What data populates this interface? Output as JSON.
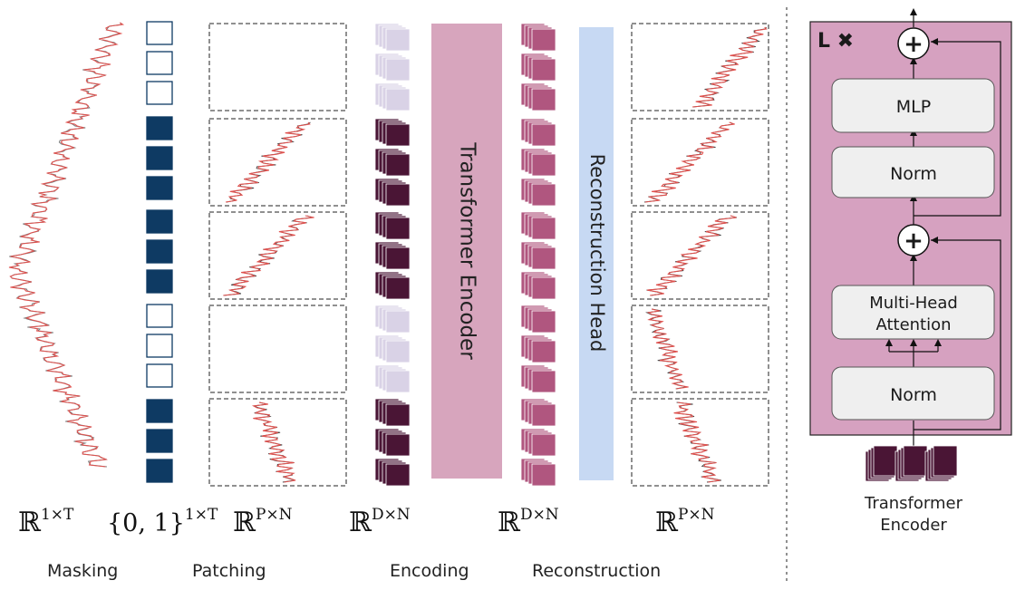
{
  "pipeline": {
    "masking_label": "Masking",
    "patching_label": "Patching",
    "encoding_label": "Encoding",
    "reconstruction_label": "Reconstruction",
    "transformer_encoder_bar": "Transformer Encoder",
    "reconstruction_head_bar": "Reconstruction Head",
    "mask_pattern": [
      0,
      0,
      0,
      1,
      1,
      1,
      1,
      1,
      1,
      0,
      0,
      0,
      1,
      1,
      1
    ],
    "patch_masked": [
      true,
      false,
      false,
      true,
      false
    ]
  },
  "math": {
    "input_space": {
      "base": "ℝ",
      "exp": "1×T"
    },
    "mask_space": {
      "base": "{0, 1}",
      "exp": "1×T"
    },
    "patch_space": {
      "base": "ℝ",
      "exp": "P×N"
    },
    "embed_space": {
      "base": "ℝ",
      "exp": "D×N"
    },
    "recon_space": {
      "base": "ℝ",
      "exp": "D×N"
    },
    "output_space": {
      "base": "ℝ",
      "exp": "P×N"
    }
  },
  "detail": {
    "repeat_label": "L ✖",
    "mlp_label": "MLP",
    "norm_top_label": "Norm",
    "attention_line1": "Multi-Head",
    "attention_line2": "Attention",
    "norm_bottom_label": "Norm",
    "add_symbol": "+",
    "caption_line1": "Transformer",
    "caption_line2": "Encoder"
  },
  "colors": {
    "mask_filled": "#0e3a63",
    "embed_dark": "#4a1535",
    "embed_light": "#d9d2e6",
    "recon_pink": "#b0567f",
    "encoder_bar": "#d7a5bd",
    "head_bar": "#c7d9f3",
    "block_bg": "#d6a1c0",
    "signal_red": "#e0524f"
  }
}
